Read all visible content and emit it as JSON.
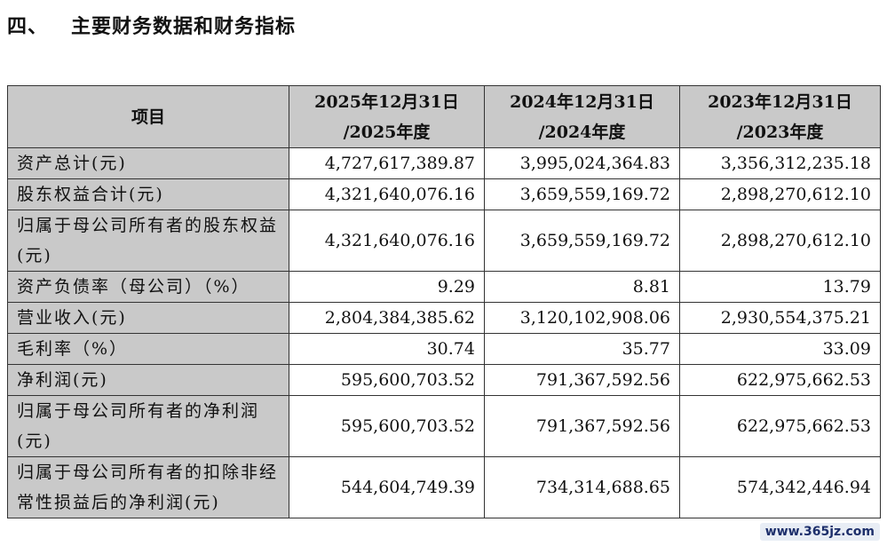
{
  "section": {
    "number": "四、",
    "title": "主要财务数据和财务指标"
  },
  "table": {
    "header": {
      "item": "项目",
      "columns": [
        {
          "line1": "2025年12月31日",
          "line2": "/2025年度"
        },
        {
          "line1": "2024年12月31日",
          "line2": "/2024年度"
        },
        {
          "line1": "2023年12月31日",
          "line2": "/2023年度"
        }
      ]
    },
    "rows": [
      {
        "label": "资产总计(元)",
        "values": [
          "4,727,617,389.87",
          "3,995,024,364.83",
          "3,356,312,235.18"
        ]
      },
      {
        "label": "股东权益合计(元)",
        "values": [
          "4,321,640,076.16",
          "3,659,559,169.72",
          "2,898,270,612.10"
        ]
      },
      {
        "label": "归属于母公司所有者的股东权益(元)",
        "values": [
          "4,321,640,076.16",
          "3,659,559,169.72",
          "2,898,270,612.10"
        ]
      },
      {
        "label": "资产负债率（母公司）（%）",
        "values": [
          "9.29",
          "8.81",
          "13.79"
        ]
      },
      {
        "label": "营业收入(元)",
        "values": [
          "2,804,384,385.62",
          "3,120,102,908.06",
          "2,930,554,375.21"
        ]
      },
      {
        "label": "毛利率（%）",
        "values": [
          "30.74",
          "35.77",
          "33.09"
        ]
      },
      {
        "label": "净利润(元)",
        "values": [
          "595,600,703.52",
          "791,367,592.56",
          "622,975,662.53"
        ]
      },
      {
        "label": "归属于母公司所有者的净利润(元)",
        "values": [
          "595,600,703.52",
          "791,367,592.56",
          "622,975,662.53"
        ]
      },
      {
        "label": "归属于母公司所有者的扣除非经常性损益后的净利润(元)",
        "values": [
          "544,604,749.39",
          "734,314,688.65",
          "574,342,446.94"
        ]
      }
    ]
  },
  "watermark": "www.365jz.com"
}
